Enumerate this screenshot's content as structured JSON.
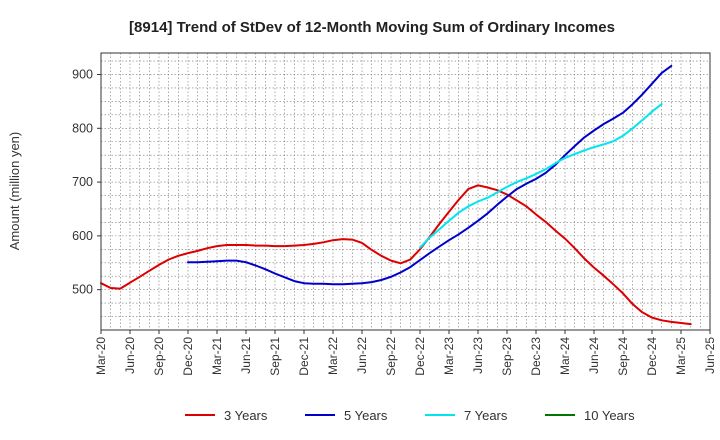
{
  "chart_data": {
    "type": "line",
    "title": "[8914]  Trend of StDev of 12-Month Moving Sum of Ordinary Incomes",
    "xlabel": "",
    "ylabel": "Amount (million yen)",
    "ylim": [
      425,
      940
    ],
    "yticks": [
      500,
      600,
      700,
      800,
      900
    ],
    "grid": true,
    "legend_position": "bottom",
    "x_tick_labels": [
      "Mar-20",
      "Jun-20",
      "Sep-20",
      "Dec-20",
      "Mar-21",
      "Jun-21",
      "Sep-21",
      "Dec-21",
      "Mar-22",
      "Jun-22",
      "Sep-22",
      "Dec-22",
      "Mar-23",
      "Jun-23",
      "Sep-23",
      "Dec-23",
      "Mar-24",
      "Jun-24",
      "Sep-24",
      "Dec-24",
      "Mar-25",
      "Jun-25"
    ],
    "series": [
      {
        "name": "3 Years",
        "color": "#dd0000",
        "start_index": 0,
        "values": [
          512,
          503,
          502,
          513,
          524,
          535,
          546,
          556,
          563,
          568,
          572,
          577,
          581,
          583,
          583,
          583,
          582,
          582,
          581,
          581,
          582,
          583,
          585,
          588,
          592,
          594,
          593,
          587,
          574,
          563,
          554,
          549,
          556,
          575,
          598,
          622,
          645,
          667,
          687,
          694,
          690,
          685,
          677,
          666,
          655,
          640,
          626,
          610,
          595,
          577,
          558,
          541,
          526,
          510,
          493,
          473,
          458,
          448,
          443,
          440,
          438,
          436
        ]
      },
      {
        "name": "5 Years",
        "color": "#0000cc",
        "start_index": 9,
        "values": [
          551,
          551,
          552,
          553,
          554,
          554,
          551,
          545,
          538,
          530,
          523,
          516,
          512,
          511,
          511,
          510,
          510,
          511,
          512,
          514,
          518,
          524,
          532,
          542,
          555,
          568,
          580,
          592,
          603,
          615,
          628,
          642,
          658,
          673,
          687,
          697,
          706,
          717,
          732,
          750,
          767,
          783,
          796,
          808,
          818,
          829,
          845,
          863,
          883,
          903,
          916
        ]
      },
      {
        "name": "7 Years",
        "color": "#00e5ee",
        "start_index": 33,
        "values": [
          578,
          597,
          612,
          628,
          643,
          655,
          664,
          671,
          681,
          691,
          700,
          707,
          715,
          724,
          735,
          745,
          752,
          759,
          765,
          770,
          776,
          786,
          800,
          815,
          831,
          845
        ]
      },
      {
        "name": "10 Years",
        "color": "#007700",
        "start_index": 0,
        "values": []
      }
    ]
  }
}
